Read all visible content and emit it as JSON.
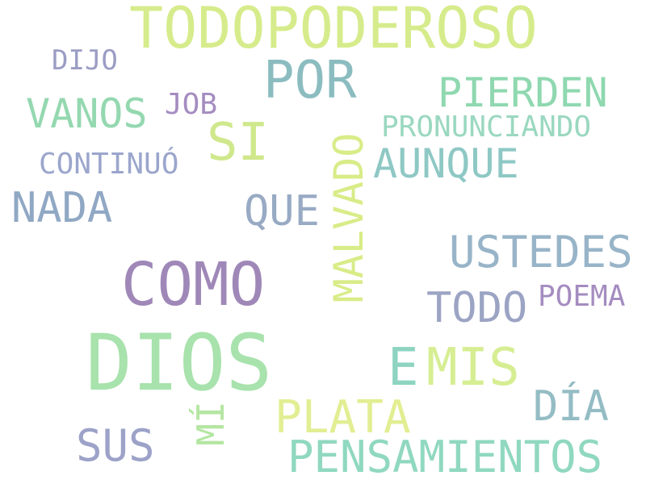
{
  "words": [
    {
      "text": "TODOPODEROSO",
      "color": "#d6ec8c"
    },
    {
      "text": "DIJO",
      "color": "#9b9dc4"
    },
    {
      "text": "POR",
      "color": "#8bbcc0"
    },
    {
      "text": "PIERDEN",
      "color": "#8fd8b0"
    },
    {
      "text": "VANOS",
      "color": "#94d8b0"
    },
    {
      "text": "JOB",
      "color": "#a48cc0"
    },
    {
      "text": "SI",
      "color": "#cfe88c"
    },
    {
      "text": "PRONUNCIANDO",
      "color": "#9ad8c0"
    },
    {
      "text": "CONTINUÓ",
      "color": "#9ba6cc"
    },
    {
      "text": "AUNQUE",
      "color": "#8ec8c4"
    },
    {
      "text": "NADA",
      "color": "#90a8c4"
    },
    {
      "text": "QUE",
      "color": "#98aac4"
    },
    {
      "text": "MALVADO",
      "color": "#d8ec88"
    },
    {
      "text": "USTEDES",
      "color": "#98b4c8"
    },
    {
      "text": "COMO",
      "color": "#9f88b8"
    },
    {
      "text": "POEMA",
      "color": "#a48cc0"
    },
    {
      "text": "TODO",
      "color": "#9ca4c4"
    },
    {
      "text": "DIOS",
      "color": "#a8e2ac"
    },
    {
      "text": "E",
      "color": "#8ed4c0"
    },
    {
      "text": "MIS",
      "color": "#d6ee92"
    },
    {
      "text": "DÍA",
      "color": "#94bcc4"
    },
    {
      "text": "MÍ",
      "color": "#b4e6a2"
    },
    {
      "text": "PLATA",
      "color": "#e2ee92"
    },
    {
      "text": "SUS",
      "color": "#9ca2c8"
    },
    {
      "text": "PENSAMIENTOS",
      "color": "#90d8c0"
    }
  ]
}
